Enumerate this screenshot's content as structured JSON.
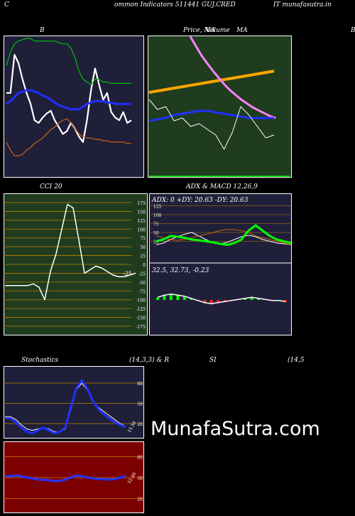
{
  "header": {
    "left": "C",
    "title": "ommon  Indicators 511441 GUJ.CRED",
    "right": "IT munafasutra.in"
  },
  "panel_labels": {
    "bb": "B",
    "price_ma": "Price,  MA",
    "volume": "Volume",
    "ma": "MA",
    "right_edge": "B",
    "cci": "CCI 20",
    "adx": "ADX  & MACD 12,26,9",
    "stoch": "Stochastics",
    "stoch_params": "(14,3,3) & R",
    "si": "SI",
    "rsi_params": "(14,5"
  },
  "watermark": "MunafaSutra.com",
  "colors": {
    "navy": "#1f1f3a",
    "green_bg": "#1f3c1f",
    "red_bg": "#7d0000",
    "orange": "#ffa500",
    "lime": "#00ff00",
    "blue": "#2030ff"
  },
  "chart_data": [
    {
      "type": "line",
      "name": "bollinger",
      "series": [
        {
          "color": "#ffffff",
          "values": [
            60,
            60,
            88,
            82,
            70,
            60,
            52,
            40,
            38,
            42,
            45,
            47,
            40,
            35,
            30,
            32,
            38,
            34,
            28,
            24,
            40,
            62,
            78,
            66,
            55,
            60,
            46,
            42,
            40,
            46,
            38,
            40
          ]
        },
        {
          "color": "#00c000",
          "values": [
            80,
            90,
            96,
            98,
            99,
            100,
            100,
            98,
            98,
            98,
            98,
            98,
            98,
            97,
            96,
            96,
            93,
            86,
            76,
            70,
            68,
            66,
            70,
            70,
            68,
            68,
            67,
            67,
            67,
            67,
            67,
            67
          ]
        },
        {
          "color": "#2030ff",
          "values": [
            52,
            54,
            57,
            60,
            61,
            62,
            62,
            61,
            60,
            58,
            57,
            55,
            53,
            51,
            50,
            49,
            48,
            48,
            48,
            50,
            52,
            53,
            54,
            54,
            54,
            53,
            53,
            52,
            52,
            52,
            52,
            52
          ]
        },
        {
          "color": "#c86414",
          "values": [
            24,
            18,
            14,
            14,
            15,
            18,
            20,
            23,
            25,
            27,
            30,
            33,
            35,
            38,
            40,
            41,
            38,
            34,
            30,
            28,
            27,
            27,
            26,
            26,
            25,
            25,
            24,
            24,
            24,
            24,
            23,
            23
          ]
        }
      ]
    },
    {
      "type": "line",
      "name": "price_ma_volume",
      "series": [
        {
          "color": "#ffa500",
          "values": [
            60,
            61,
            62,
            63,
            64,
            65,
            66,
            67,
            68,
            69,
            70,
            71,
            72,
            73,
            74,
            75
          ]
        },
        {
          "color": "#ff80ff",
          "values": [
            140,
            130,
            120,
            112,
            104,
            97,
            90,
            84,
            79,
            74,
            70,
            66,
            63,
            60,
            57,
            55
          ]
        },
        {
          "color": "#2030ff",
          "values": [
            40,
            41,
            42,
            44,
            45,
            46,
            47,
            47,
            46,
            45,
            44,
            43,
            42,
            42,
            42,
            42
          ]
        },
        {
          "color": "#ffffff",
          "values": [
            55,
            48,
            50,
            40,
            42,
            36,
            38,
            34,
            30,
            20,
            32,
            50,
            44,
            36,
            28,
            30
          ]
        }
      ]
    },
    {
      "type": "line",
      "name": "cci",
      "yticks": [
        175,
        150,
        125,
        100,
        75,
        50,
        25,
        0,
        -25,
        -50,
        -75,
        -100,
        -125,
        -150,
        -175
      ],
      "last_value": "-25",
      "values": [
        -60,
        -60,
        -60,
        -60,
        -60,
        -55,
        -65,
        -100,
        -20,
        30,
        100,
        170,
        160,
        70,
        -25,
        -15,
        -5,
        -10,
        -20,
        -30,
        -35,
        -35,
        -30,
        -25
      ]
    },
    {
      "type": "line",
      "name": "adx_macd",
      "adx_label": "ADX: 0   +DY: 20.63 -DY: 20.63",
      "macd_label": "32.5,  32.73,  -0.23",
      "adx_yticks": [
        75,
        50,
        25,
        100,
        125
      ],
      "adx": [
        25,
        30,
        40,
        38,
        35,
        30,
        28,
        25,
        22,
        18,
        15,
        20,
        30,
        55,
        70,
        55,
        40,
        30,
        25,
        20
      ],
      "pdi": [
        40,
        35,
        30,
        28,
        30,
        35,
        40,
        45,
        50,
        55,
        58,
        58,
        55,
        50,
        40,
        35,
        30,
        25,
        20,
        15
      ],
      "mdi": [
        15,
        20,
        30,
        38,
        45,
        50,
        40,
        30,
        20,
        18,
        22,
        30,
        38,
        42,
        38,
        30,
        25,
        20,
        18,
        15
      ],
      "macd": [
        0.2,
        0.4,
        0.5,
        0.4,
        0.3,
        0.1,
        -0.1,
        -0.3,
        -0.4,
        -0.3,
        -0.2,
        -0.1,
        0.0,
        0.1,
        0.2,
        0.1,
        0.0,
        -0.1,
        -0.1,
        -0.2
      ]
    },
    {
      "type": "line",
      "name": "stochastics",
      "yticks": [
        80,
        50,
        20
      ],
      "last_value": "15.58",
      "k": [
        28,
        28,
        22,
        14,
        8,
        6,
        10,
        14,
        10,
        6,
        8,
        14,
        44,
        72,
        84,
        72,
        54,
        42,
        34,
        28,
        22,
        18,
        15
      ],
      "d": [
        30,
        30,
        26,
        18,
        12,
        10,
        12,
        14,
        12,
        8,
        8,
        12,
        40,
        70,
        80,
        70,
        54,
        44,
        38,
        32,
        26,
        20,
        16
      ]
    },
    {
      "type": "line",
      "name": "rsi",
      "yticks": [
        80,
        50,
        20
      ],
      "last_value": "52.48",
      "values": [
        52,
        52,
        53,
        52,
        50,
        49,
        47,
        47,
        46,
        45,
        45,
        47,
        50,
        53,
        52,
        50,
        49,
        48,
        48,
        47,
        48,
        50,
        52
      ]
    }
  ]
}
